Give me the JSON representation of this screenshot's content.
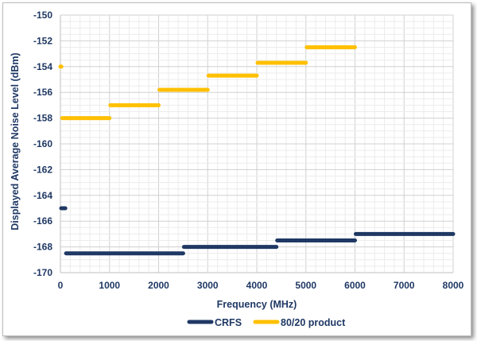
{
  "chart_data": {
    "type": "line",
    "title": "",
    "xlabel": "Frequency (MHz)",
    "ylabel": "Displayed  Average Noise Level (dBm)",
    "xlim": [
      0,
      8000
    ],
    "ylim": [
      -170,
      -150
    ],
    "x_ticks": [
      "0",
      "1000",
      "2000",
      "3000",
      "4000",
      "5000",
      "6000",
      "7000",
      "8000"
    ],
    "y_ticks": [
      "-150",
      "-152",
      "-154",
      "-156",
      "-158",
      "-160",
      "-162",
      "-164",
      "-166",
      "-168",
      "-170"
    ],
    "grid": true,
    "legend_position": "bottom",
    "series": [
      {
        "name": "CRFS",
        "color": "#1f3864",
        "segments": [
          {
            "x": [
              0,
              100
            ],
            "y": -165
          },
          {
            "x": [
              100,
              2500
            ],
            "y": -168.5
          },
          {
            "x": [
              2500,
              4400
            ],
            "y": -168
          },
          {
            "x": [
              4400,
              6000
            ],
            "y": -167.5
          },
          {
            "x": [
              6000,
              8000
            ],
            "y": -167
          }
        ]
      },
      {
        "name": "80/20 product",
        "color": "#ffc000",
        "segments": [
          {
            "x": [
              0,
              20
            ],
            "y": -154
          },
          {
            "x": [
              20,
              1000
            ],
            "y": -158
          },
          {
            "x": [
              1000,
              2000
            ],
            "y": -157
          },
          {
            "x": [
              2000,
              3000
            ],
            "y": -155.8
          },
          {
            "x": [
              3000,
              4000
            ],
            "y": -154.7
          },
          {
            "x": [
              4000,
              5000
            ],
            "y": -153.7
          },
          {
            "x": [
              5000,
              6000
            ],
            "y": -152.5
          }
        ]
      }
    ]
  }
}
